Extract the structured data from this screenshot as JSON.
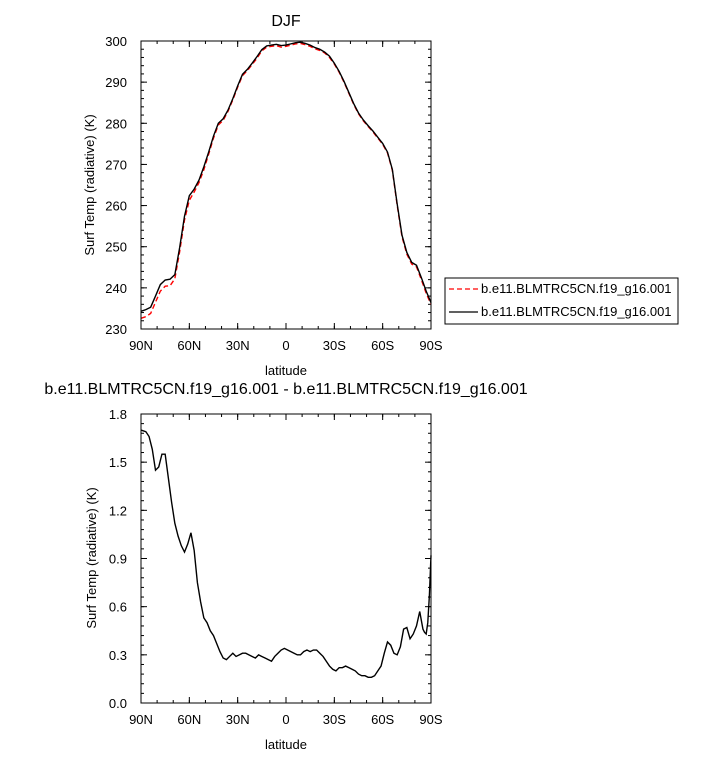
{
  "chart_data": [
    {
      "type": "line",
      "title": "DJF",
      "xlabel": "latitude",
      "ylabel": "Surf Temp (radiative) (K)",
      "xlim": [
        90,
        -90
      ],
      "ylim": [
        230,
        300
      ],
      "xticks": [
        {
          "v": 90,
          "label": "90N"
        },
        {
          "v": 60,
          "label": "60N"
        },
        {
          "v": 30,
          "label": "30N"
        },
        {
          "v": 0,
          "label": "0"
        },
        {
          "v": -30,
          "label": "30S"
        },
        {
          "v": -60,
          "label": "60S"
        },
        {
          "v": -90,
          "label": "90S"
        }
      ],
      "yticks": [
        230,
        240,
        250,
        260,
        270,
        280,
        290,
        300
      ],
      "legend_position": "right",
      "series": [
        {
          "name": "b.e11.BLMTRC5CN.f19_g16.001",
          "color": "#ff0000",
          "dash": "dashed",
          "x": [
            90,
            87,
            84,
            81,
            78,
            75,
            72,
            69,
            66,
            63,
            60,
            57,
            54,
            51,
            48,
            45,
            42,
            39,
            36,
            33,
            30,
            27,
            24,
            21,
            18,
            15,
            12,
            9,
            6,
            3,
            0,
            -3,
            -6,
            -9,
            -12,
            -15,
            -18,
            -21,
            -24,
            -27,
            -30,
            -33,
            -36,
            -39,
            -42,
            -45,
            -48,
            -51,
            -54,
            -57,
            -60,
            -63,
            -66,
            -69,
            -72,
            -75,
            -78,
            -81,
            -84,
            -87,
            -90
          ],
          "y": [
            232.6,
            233.0,
            233.8,
            236.5,
            239.2,
            240.4,
            240.5,
            242.2,
            248.8,
            256.5,
            261.3,
            263.3,
            265.6,
            268.7,
            272.5,
            276.4,
            279.6,
            280.7,
            282.9,
            285.7,
            288.8,
            291.6,
            292.8,
            294.3,
            295.8,
            297.6,
            298.5,
            298.7,
            298.9,
            298.5,
            298.7,
            299.0,
            299.3,
            299.4,
            299.1,
            298.7,
            298.1,
            297.7,
            297.1,
            296.0,
            294.4,
            292.4,
            290.0,
            287.3,
            284.6,
            282.3,
            280.6,
            279.2,
            277.9,
            276.4,
            274.9,
            272.8,
            268.6,
            260.1,
            252.4,
            248.2,
            245.8,
            245.1,
            242.0,
            238.7,
            236.0
          ]
        },
        {
          "name": "b.e11.BLMTRC5CN.f19_g16.001",
          "color": "#000000",
          "dash": "solid",
          "x": [
            90,
            87,
            84,
            81,
            78,
            75,
            72,
            69,
            66,
            63,
            60,
            57,
            54,
            51,
            48,
            45,
            42,
            39,
            36,
            33,
            30,
            27,
            24,
            21,
            18,
            15,
            12,
            9,
            6,
            3,
            0,
            -3,
            -6,
            -9,
            -12,
            -15,
            -18,
            -21,
            -24,
            -27,
            -30,
            -33,
            -36,
            -39,
            -42,
            -45,
            -48,
            -51,
            -54,
            -57,
            -60,
            -63,
            -66,
            -69,
            -72,
            -75,
            -78,
            -81,
            -84,
            -87,
            -90
          ],
          "y": [
            234.3,
            234.7,
            235.3,
            238.0,
            240.8,
            241.9,
            242.1,
            243.2,
            249.8,
            257.4,
            262.4,
            264.0,
            266.2,
            269.4,
            273.0,
            276.9,
            280.0,
            281.1,
            283.2,
            286.0,
            289.1,
            291.9,
            293.1,
            294.6,
            296.2,
            297.9,
            298.8,
            299.0,
            299.2,
            298.9,
            299.0,
            299.3,
            299.6,
            299.7,
            299.4,
            299.0,
            298.4,
            298.0,
            297.3,
            296.3,
            294.6,
            292.6,
            290.2,
            287.5,
            284.8,
            282.5,
            280.8,
            279.4,
            278.1,
            276.6,
            275.1,
            273.0,
            268.8,
            260.4,
            252.8,
            248.6,
            246.2,
            245.5,
            242.5,
            239.2,
            236.4
          ]
        }
      ]
    },
    {
      "type": "line",
      "title": "b.e11.BLMTRC5CN.f19_g16.001 - b.e11.BLMTRC5CN.f19_g16.001",
      "xlabel": "latitude",
      "ylabel": "Surf Temp (radiative) (K)",
      "xlim": [
        90,
        -90
      ],
      "ylim": [
        0.0,
        1.8
      ],
      "xticks": [
        {
          "v": 90,
          "label": "90N"
        },
        {
          "v": 60,
          "label": "60N"
        },
        {
          "v": 30,
          "label": "30N"
        },
        {
          "v": 0,
          "label": "0"
        },
        {
          "v": -30,
          "label": "30S"
        },
        {
          "v": -60,
          "label": "60S"
        },
        {
          "v": -90,
          "label": "90S"
        }
      ],
      "yticks": [
        {
          "v": 0.0,
          "label": "0.0"
        },
        {
          "v": 0.3,
          "label": "0.3"
        },
        {
          "v": 0.6,
          "label": "0.6"
        },
        {
          "v": 0.9,
          "label": "0.9"
        },
        {
          "v": 1.2,
          "label": "1.2"
        },
        {
          "v": 1.5,
          "label": "1.5"
        },
        {
          "v": 1.8,
          "label": "1.8"
        }
      ],
      "series": [
        {
          "color": "#000000",
          "dash": "solid",
          "x": [
            90,
            87,
            85,
            83,
            81,
            79,
            77,
            75,
            73,
            71,
            69,
            67,
            65,
            63,
            61,
            59,
            57,
            55,
            53,
            51,
            49,
            47,
            45,
            43,
            41,
            39,
            37,
            35,
            33,
            31,
            29,
            27,
            25,
            23,
            21,
            19,
            17,
            15,
            13,
            11,
            9,
            7,
            5,
            3,
            1,
            -1,
            -3,
            -5,
            -7,
            -9,
            -11,
            -13,
            -15,
            -17,
            -19,
            -21,
            -23,
            -25,
            -27,
            -29,
            -31,
            -33,
            -35,
            -37,
            -39,
            -41,
            -43,
            -45,
            -47,
            -49,
            -51,
            -53,
            -55,
            -57,
            -59,
            -61,
            -63,
            -65,
            -67,
            -69,
            -71,
            -73,
            -75,
            -77,
            -79,
            -81,
            -83,
            -85,
            -86,
            -87,
            -88,
            -89,
            -90
          ],
          "y": [
            1.7,
            1.69,
            1.66,
            1.58,
            1.45,
            1.47,
            1.55,
            1.55,
            1.4,
            1.25,
            1.12,
            1.04,
            0.98,
            0.94,
            0.99,
            1.06,
            0.95,
            0.75,
            0.63,
            0.53,
            0.5,
            0.45,
            0.42,
            0.37,
            0.32,
            0.28,
            0.27,
            0.29,
            0.31,
            0.29,
            0.3,
            0.31,
            0.31,
            0.3,
            0.29,
            0.28,
            0.3,
            0.29,
            0.28,
            0.27,
            0.26,
            0.29,
            0.31,
            0.33,
            0.34,
            0.33,
            0.32,
            0.31,
            0.3,
            0.3,
            0.32,
            0.33,
            0.32,
            0.33,
            0.33,
            0.31,
            0.29,
            0.26,
            0.23,
            0.21,
            0.2,
            0.22,
            0.22,
            0.23,
            0.22,
            0.21,
            0.2,
            0.18,
            0.17,
            0.17,
            0.16,
            0.16,
            0.17,
            0.2,
            0.23,
            0.31,
            0.38,
            0.36,
            0.31,
            0.3,
            0.35,
            0.46,
            0.47,
            0.4,
            0.43,
            0.48,
            0.57,
            0.46,
            0.44,
            0.43,
            0.5,
            0.67,
            0.92
          ]
        }
      ]
    }
  ]
}
